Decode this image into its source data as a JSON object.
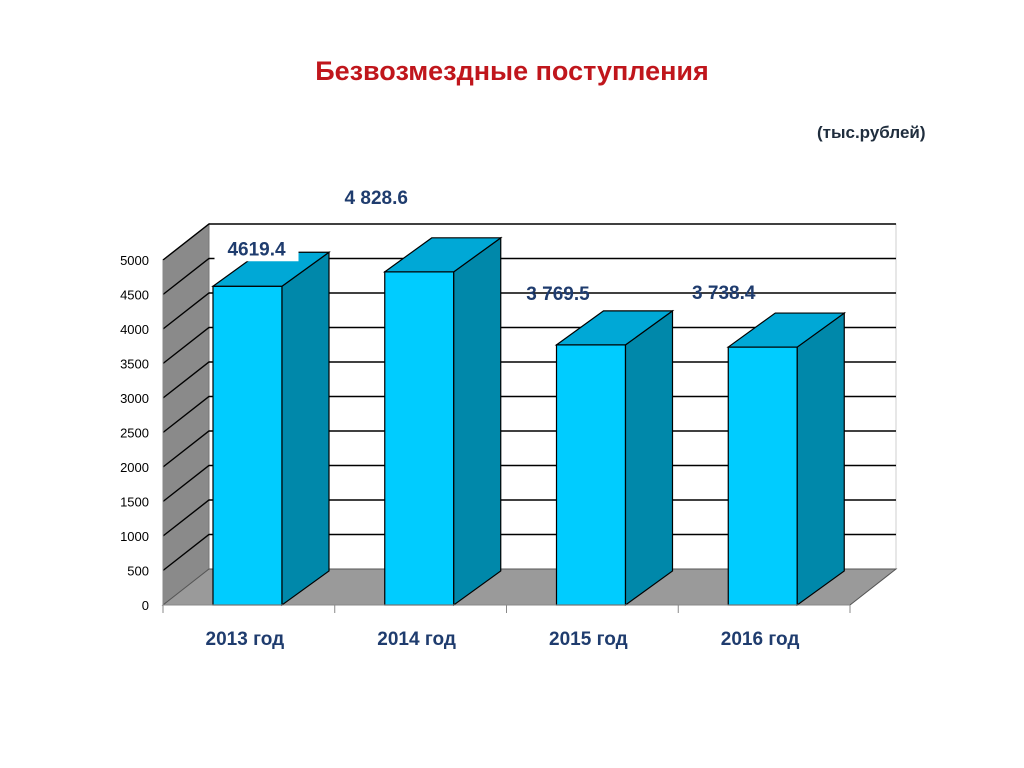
{
  "chart_data": {
    "type": "bar",
    "title": "Безвозмездные поступления",
    "unit": "(тыс.рублей)",
    "categories": [
      "2013 год",
      "2014 год",
      "2015 год",
      "2016 год"
    ],
    "values": [
      4619.4,
      4828.6,
      3769.5,
      3738.4
    ],
    "data_labels": [
      "4619.4",
      "4 828.6",
      "3 769.5",
      "3 738.4"
    ],
    "yticks": [
      0,
      500,
      1000,
      1500,
      2000,
      2500,
      3000,
      3500,
      4000,
      4500,
      5000
    ],
    "ylim": [
      0,
      5000
    ],
    "grid": true,
    "colors": {
      "front": "#00ccff",
      "side": "#0088aa",
      "top": "#00a8d6",
      "floor": "#9a9a9a",
      "wall": "#ffffff"
    }
  }
}
